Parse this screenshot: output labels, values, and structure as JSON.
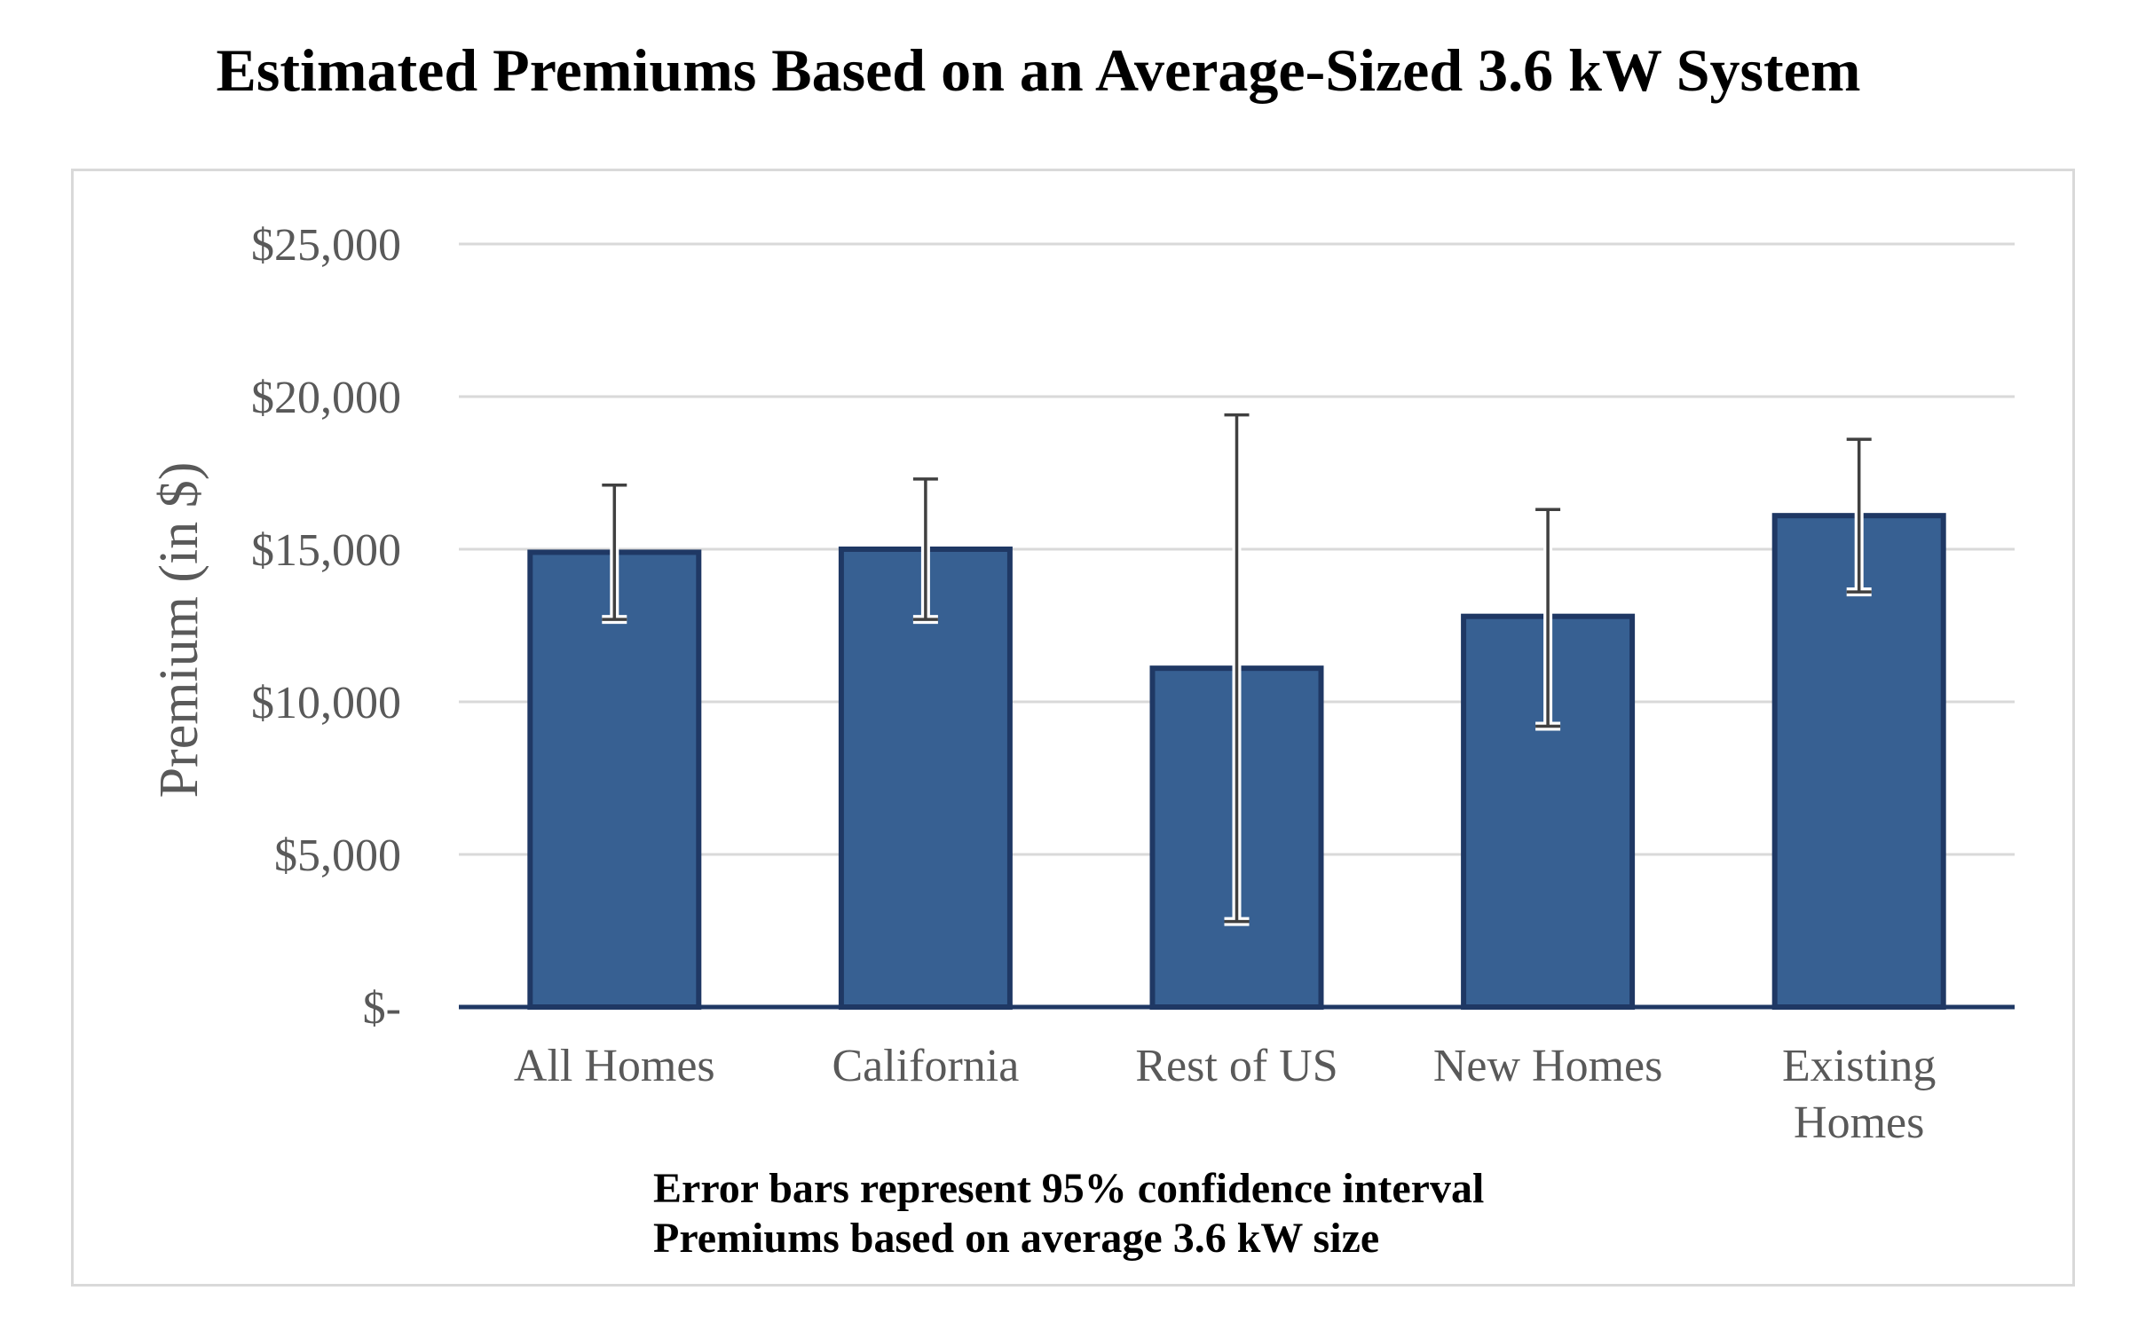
{
  "chart_data": {
    "type": "bar",
    "title": "Estimated Premiums Based on an Average-Sized 3.6 kW System",
    "xlabel": "",
    "ylabel": "Premium (in $)",
    "categories": [
      "All Homes",
      "California",
      "Rest of US",
      "New Homes",
      "Existing Homes"
    ],
    "category_lines": [
      [
        "All Homes"
      ],
      [
        "California"
      ],
      [
        "Rest of US"
      ],
      [
        "New Homes"
      ],
      [
        "Existing",
        "Homes"
      ]
    ],
    "values": [
      14900,
      15000,
      11100,
      12800,
      16100
    ],
    "error_bars": {
      "type": "95% confidence interval",
      "lower": [
        12700,
        12700,
        2800,
        9200,
        13600
      ],
      "upper": [
        17100,
        17300,
        19400,
        16300,
        18600
      ]
    },
    "ylim": [
      0,
      25000
    ],
    "yticks": [
      0,
      5000,
      10000,
      15000,
      20000,
      25000
    ],
    "ytick_labels": [
      "$-",
      "$5,000",
      "$10,000",
      "$15,000",
      "$20,000",
      "$25,000"
    ],
    "grid": true,
    "legend": "none",
    "colors": {
      "bar_fill": "#376092",
      "bar_border": "#1f3864",
      "axis": "#1f3864",
      "gridline": "#d9d9d9",
      "error_bar": "#404040",
      "tick_text": "#595959"
    }
  },
  "notes": [
    "Error bars represent 95% confidence interval",
    "Premiums based on average 3.6 kW size"
  ]
}
